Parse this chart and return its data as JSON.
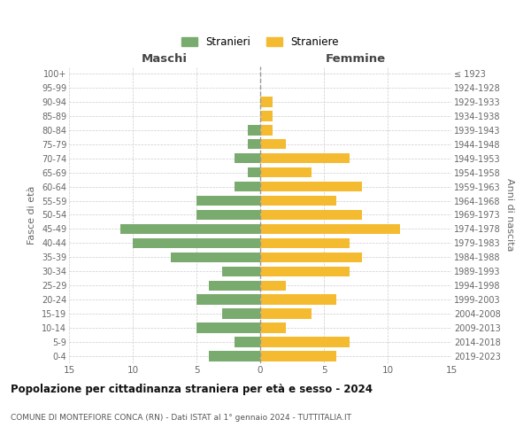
{
  "age_groups": [
    "0-4",
    "5-9",
    "10-14",
    "15-19",
    "20-24",
    "25-29",
    "30-34",
    "35-39",
    "40-44",
    "45-49",
    "50-54",
    "55-59",
    "60-64",
    "65-69",
    "70-74",
    "75-79",
    "80-84",
    "85-89",
    "90-94",
    "95-99",
    "100+"
  ],
  "birth_years": [
    "2019-2023",
    "2014-2018",
    "2009-2013",
    "2004-2008",
    "1999-2003",
    "1994-1998",
    "1989-1993",
    "1984-1988",
    "1979-1983",
    "1974-1978",
    "1969-1973",
    "1964-1968",
    "1959-1963",
    "1954-1958",
    "1949-1953",
    "1944-1948",
    "1939-1943",
    "1934-1938",
    "1929-1933",
    "1924-1928",
    "≤ 1923"
  ],
  "maschi": [
    4,
    2,
    5,
    3,
    5,
    4,
    3,
    7,
    10,
    11,
    5,
    5,
    2,
    1,
    2,
    1,
    1,
    0,
    0,
    0,
    0
  ],
  "femmine": [
    6,
    7,
    2,
    4,
    6,
    2,
    7,
    8,
    7,
    11,
    8,
    6,
    8,
    4,
    7,
    2,
    1,
    1,
    1,
    0,
    0
  ],
  "color_maschi": "#7aab6e",
  "color_femmine": "#f5bb30",
  "title_main": "Popolazione per cittadinanza straniera per età e sesso - 2024",
  "title_sub": "COMUNE DI MONTEFIORE CONCA (RN) - Dati ISTAT al 1° gennaio 2024 - TUTTITALIA.IT",
  "legend_maschi": "Stranieri",
  "legend_femmine": "Straniere",
  "label_maschi": "Maschi",
  "label_femmine": "Femmine",
  "ylabel_left": "Fasce di età",
  "ylabel_right": "Anni di nascita",
  "xlim": 15,
  "background_color": "#ffffff",
  "grid_color": "#cccccc"
}
